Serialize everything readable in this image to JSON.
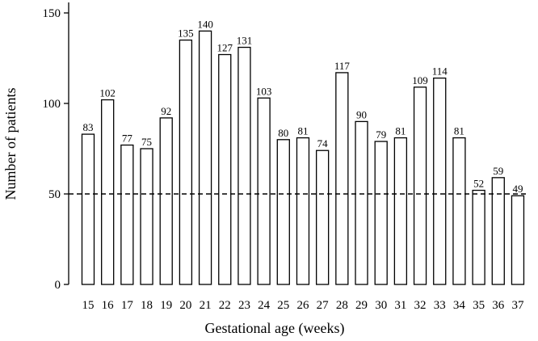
{
  "chart_data": {
    "type": "bar",
    "x_label": "Gestational age (weeks)",
    "y_label": "Number of patients",
    "categories": [
      "15",
      "16",
      "17",
      "18",
      "19",
      "20",
      "21",
      "22",
      "23",
      "24",
      "25",
      "26",
      "27",
      "28",
      "29",
      "30",
      "31",
      "32",
      "33",
      "34",
      "35",
      "36",
      "37"
    ],
    "values": [
      83,
      102,
      77,
      75,
      92,
      135,
      140,
      127,
      131,
      103,
      80,
      81,
      74,
      117,
      90,
      79,
      81,
      109,
      114,
      81,
      52,
      59,
      49
    ],
    "color": "#ffffff",
    "edge_color": "#000000",
    "ylim": [
      0,
      150
    ],
    "yticks": [
      0,
      50,
      100,
      150
    ],
    "reference_line": 50,
    "show_value_labels": true
  }
}
